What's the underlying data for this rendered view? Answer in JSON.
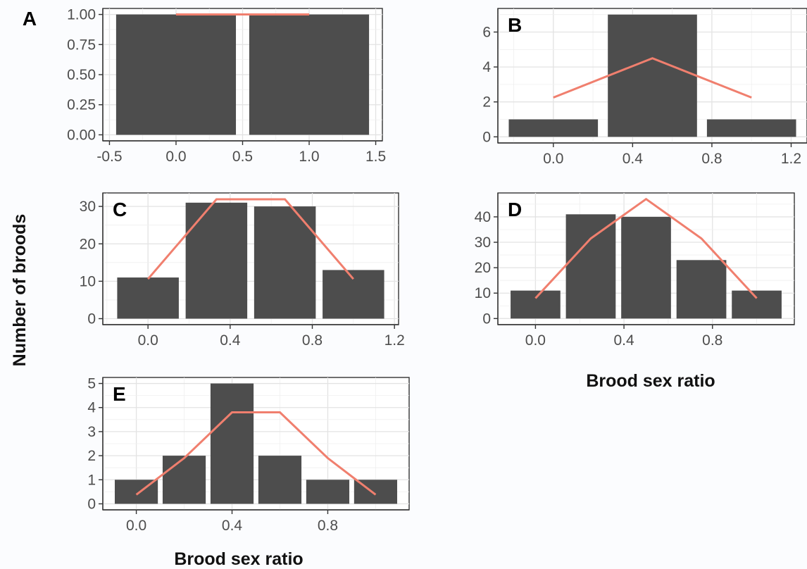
{
  "colors": {
    "bar": "#4d4d4d",
    "curve": "#f07f6e",
    "background": "#fbfcfe"
  },
  "y_axis_title": "Number of broods",
  "x_axis_title": "Brood sex ratio",
  "chart_data": [
    {
      "type": "bar",
      "panel": "A",
      "x": [
        0.0,
        1.0
      ],
      "values": [
        1,
        1
      ],
      "expected_line": {
        "x": [
          0.0,
          1.0
        ],
        "y": [
          1.0,
          1.0
        ]
      },
      "xlim": [
        -0.55,
        1.55
      ],
      "ylim": [
        -0.05,
        1.05
      ],
      "xticks": [
        -0.5,
        0.0,
        0.5,
        1.0,
        1.5
      ],
      "xtick_labels": [
        "-0.5",
        "0.0",
        "0.5",
        "1.0",
        "1.5"
      ],
      "yticks": [
        0.0,
        0.25,
        0.5,
        0.75,
        1.0
      ],
      "ytick_labels": [
        "0.00",
        "0.25",
        "0.50",
        "0.75",
        "1.00"
      ],
      "grid": true
    },
    {
      "type": "bar",
      "panel": "B",
      "x": [
        0.0,
        0.5,
        1.0
      ],
      "values": [
        1,
        7,
        1
      ],
      "expected_line": {
        "x": [
          0.0,
          0.5,
          1.0
        ],
        "y": [
          2.25,
          4.5,
          2.25
        ]
      },
      "xlim": [
        -0.28,
        1.28
      ],
      "ylim": [
        -0.35,
        7.35
      ],
      "xticks": [
        0.0,
        0.4,
        0.8,
        1.2
      ],
      "xtick_labels": [
        "0.0",
        "0.4",
        "0.8",
        "1.2"
      ],
      "yticks": [
        0,
        2,
        4,
        6
      ],
      "ytick_labels": [
        "0",
        "2",
        "4",
        "6"
      ],
      "grid": true
    },
    {
      "type": "bar",
      "panel": "C",
      "x": [
        0.0,
        0.3333,
        0.6667,
        1.0
      ],
      "values": [
        11,
        31,
        30,
        13
      ],
      "expected_line": {
        "x": [
          0.0,
          0.3333,
          0.6667,
          1.0
        ],
        "y": [
          10.6,
          31.9,
          31.9,
          10.6
        ]
      },
      "xlim": [
        -0.22,
        1.22
      ],
      "ylim": [
        -1.6,
        33.6
      ],
      "xticks": [
        0.0,
        0.4,
        0.8,
        1.2
      ],
      "xtick_labels": [
        "0.0",
        "0.4",
        "0.8",
        "1.2"
      ],
      "yticks": [
        0,
        10,
        20,
        30
      ],
      "ytick_labels": [
        "0",
        "10",
        "20",
        "30"
      ],
      "grid": true
    },
    {
      "type": "bar",
      "panel": "D",
      "x": [
        0.0,
        0.25,
        0.5,
        0.75,
        1.0
      ],
      "values": [
        11,
        41,
        40,
        23,
        11
      ],
      "expected_line": {
        "x": [
          0.0,
          0.25,
          0.5,
          0.75,
          1.0
        ],
        "y": [
          8,
          31.5,
          47,
          31.5,
          8
        ]
      },
      "xlim": [
        -0.17,
        1.17
      ],
      "ylim": [
        -2.4,
        49.4
      ],
      "xticks": [
        0.0,
        0.4,
        0.8
      ],
      "xtick_labels": [
        "0.0",
        "0.4",
        "0.8"
      ],
      "yticks": [
        0,
        10,
        20,
        30,
        40
      ],
      "ytick_labels": [
        "0",
        "10",
        "20",
        "30",
        "40"
      ],
      "grid": true
    },
    {
      "type": "bar",
      "panel": "E",
      "x": [
        0.0,
        0.2,
        0.4,
        0.6,
        0.8,
        1.0
      ],
      "values": [
        1,
        2,
        5,
        2,
        1,
        1
      ],
      "expected_line": {
        "x": [
          0.0,
          0.2,
          0.4,
          0.6,
          0.8,
          1.0
        ],
        "y": [
          0.38,
          1.9,
          3.8,
          3.8,
          1.9,
          0.38
        ]
      },
      "xlim": [
        -0.14,
        1.14
      ],
      "ylim": [
        -0.25,
        5.25
      ],
      "xticks": [
        0.0,
        0.4,
        0.8
      ],
      "xtick_labels": [
        "0.0",
        "0.4",
        "0.8"
      ],
      "yticks": [
        0,
        1,
        2,
        3,
        4,
        5
      ],
      "ytick_labels": [
        "0",
        "1",
        "2",
        "3",
        "4",
        "5"
      ],
      "grid": true
    }
  ]
}
